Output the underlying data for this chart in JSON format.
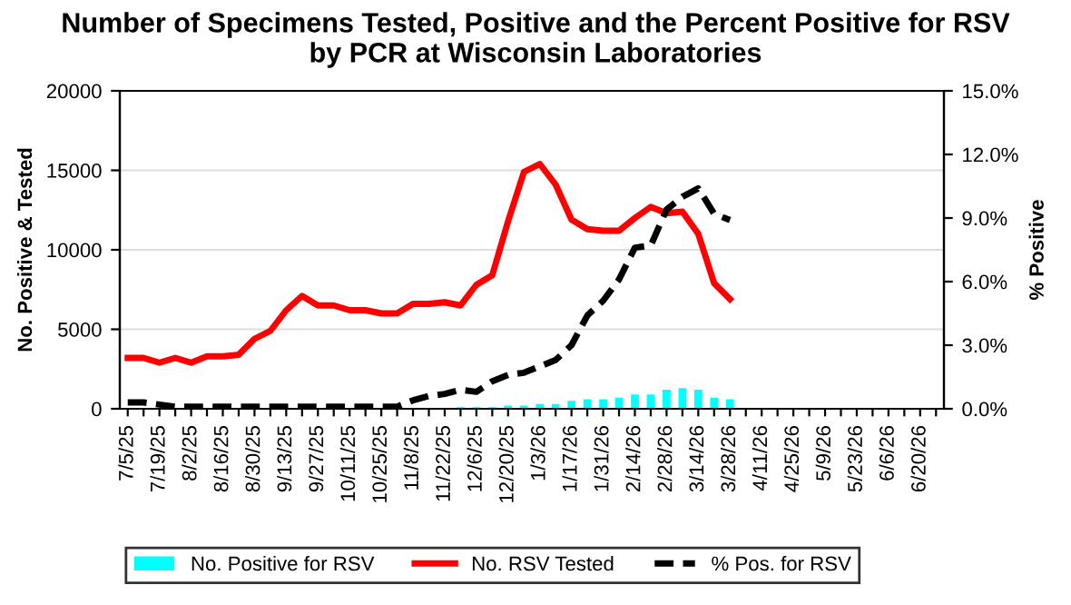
{
  "chart_data": {
    "type": "bar",
    "title": "Number of Specimens Tested, Positive and the Percent Positive for RSV by PCR at Wisconsin Laboratories",
    "ylabel": "No. Positive & Tested",
    "y2label": "% Positive",
    "categories": [
      "7/5/25",
      null,
      "7/19/25",
      null,
      "8/2/25",
      null,
      "8/16/25",
      null,
      "8/30/25",
      null,
      "9/13/25",
      null,
      "9/27/25",
      null,
      "10/11/25",
      null,
      "10/25/25",
      null,
      "11/8/25",
      null,
      "11/22/25",
      null,
      "12/6/25",
      null,
      "12/20/25",
      null,
      "1/3/26",
      null,
      "1/17/26",
      null,
      "1/31/26",
      null,
      "2/14/26",
      null,
      "2/28/26",
      null,
      "3/14/26",
      null,
      "3/28/26",
      null,
      "4/11/26",
      null,
      "4/25/26",
      null,
      "5/9/26",
      null,
      "5/23/26",
      null,
      "6/6/26",
      null,
      "6/20/26",
      null
    ],
    "series": [
      {
        "name": "No. Positive for RSV",
        "color": "#00ffff",
        "values": [
          0,
          0,
          0,
          0,
          0,
          0,
          0,
          0,
          0,
          0,
          0,
          0,
          0,
          0,
          0,
          0,
          0,
          0,
          0,
          0,
          0,
          100,
          100,
          100,
          200,
          200,
          300,
          300,
          500,
          600,
          600,
          700,
          900,
          900,
          1200,
          1300,
          1200,
          700,
          600,
          null,
          null,
          null,
          null,
          null,
          null,
          null,
          null,
          null,
          null,
          null,
          null,
          null
        ]
      },
      {
        "name": "No. RSV Tested",
        "type": "line",
        "color": "#ff0000",
        "line_style": "solid",
        "values": [
          3200,
          3200,
          2900,
          3200,
          2900,
          3300,
          3300,
          3400,
          4400,
          4900,
          6200,
          7100,
          6500,
          6500,
          6200,
          6200,
          6000,
          6000,
          6600,
          6600,
          6700,
          6500,
          7800,
          8400,
          11800,
          14900,
          15400,
          14100,
          11900,
          11300,
          11200,
          11200,
          12000,
          12700,
          12300,
          12400,
          11000,
          7900,
          6900,
          null,
          null,
          null,
          null,
          null,
          null,
          null,
          null,
          null,
          null,
          null,
          null,
          null
        ]
      },
      {
        "name": "% Pos. for RSV",
        "type": "line",
        "axis": "y2",
        "color": "#000000",
        "line_style": "dashed",
        "values": [
          0.3,
          0.3,
          0.2,
          0.1,
          0.1,
          0.1,
          0.1,
          0.1,
          0.1,
          0.1,
          0.1,
          0.1,
          0.1,
          0.1,
          0.1,
          0.1,
          0.1,
          0.1,
          0.4,
          0.6,
          0.7,
          0.9,
          0.8,
          1.3,
          1.6,
          1.7,
          2.0,
          2.3,
          3.0,
          4.4,
          5.1,
          6.1,
          7.6,
          7.7,
          9.4,
          10.0,
          10.4,
          9.2,
          8.9,
          null,
          null,
          null,
          null,
          null,
          null,
          null,
          null,
          null,
          null,
          null,
          null,
          null
        ]
      }
    ],
    "ylim": [
      0,
      20000
    ],
    "yticks": [
      0,
      5000,
      10000,
      15000,
      20000
    ],
    "y2lim": [
      0,
      15
    ],
    "y2ticks": [
      {
        "value": 0,
        "label": "0.0%"
      },
      {
        "value": 3,
        "label": "3.0%"
      },
      {
        "value": 6,
        "label": "6.0%"
      },
      {
        "value": 9,
        "label": "9.0%"
      },
      {
        "value": 12,
        "label": "12.0%"
      },
      {
        "value": 15,
        "label": "15.0%"
      }
    ],
    "grid": "y",
    "legend": "bottom"
  }
}
